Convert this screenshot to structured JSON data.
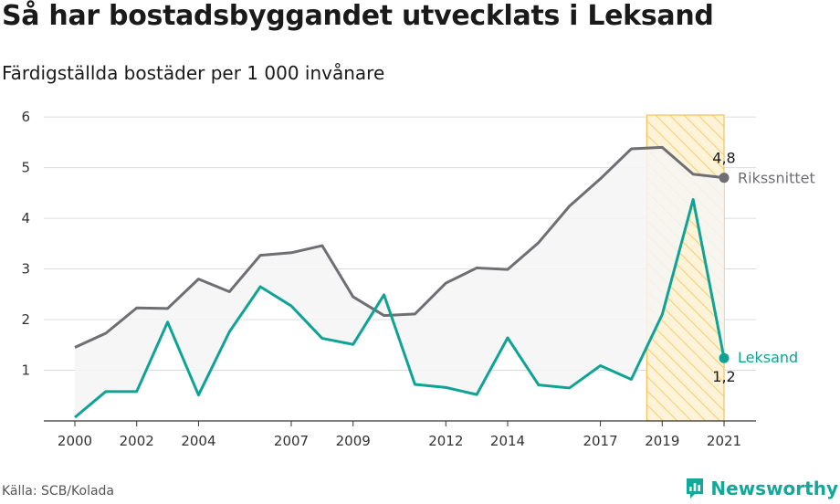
{
  "title": "Så har bostadsbyggandet utvecklats i Leksand",
  "subtitle": "Färdigställda bostäder per 1 000 invånare",
  "source": "Källa: SCB/Kolada",
  "brand": "Newsworthy",
  "colors": {
    "riket": "#6e6e73",
    "leksand": "#0fa396",
    "highlight_fill": "#fdf3d8",
    "highlight_stroke": "#f3c25a",
    "grid": "#dcdcdc",
    "band": "#f4f4f4"
  },
  "chart_data": {
    "type": "line",
    "x": [
      2000,
      2001,
      2002,
      2003,
      2004,
      2005,
      2006,
      2007,
      2008,
      2009,
      2010,
      2011,
      2012,
      2013,
      2014,
      2015,
      2016,
      2017,
      2018,
      2019,
      2020,
      2021
    ],
    "series": [
      {
        "name": "Rikssnittet",
        "values": [
          1.45,
          1.73,
          2.23,
          2.22,
          2.8,
          2.55,
          3.27,
          3.32,
          3.46,
          2.45,
          2.08,
          2.11,
          2.72,
          3.02,
          2.99,
          3.52,
          4.24,
          4.78,
          5.37,
          5.4,
          4.87,
          4.8
        ]
      },
      {
        "name": "Leksand",
        "values": [
          0.07,
          0.58,
          0.58,
          1.95,
          0.51,
          1.76,
          2.65,
          2.27,
          1.63,
          1.51,
          2.49,
          0.72,
          0.66,
          0.52,
          1.64,
          0.71,
          0.65,
          1.09,
          0.82,
          2.1,
          4.37,
          1.24
        ]
      }
    ],
    "end_labels": [
      "4,8",
      "1,2"
    ],
    "xticks": [
      "2000",
      "2002",
      "2004",
      "2007",
      "2009",
      "2012",
      "2014",
      "2017",
      "2019",
      "2021"
    ],
    "yticks": [
      "1",
      "2",
      "3",
      "4",
      "5",
      "6"
    ],
    "ylim": [
      0,
      6.2
    ],
    "highlight_range": [
      2018.5,
      2021
    ],
    "grid": true,
    "legend": "line-end labels"
  }
}
